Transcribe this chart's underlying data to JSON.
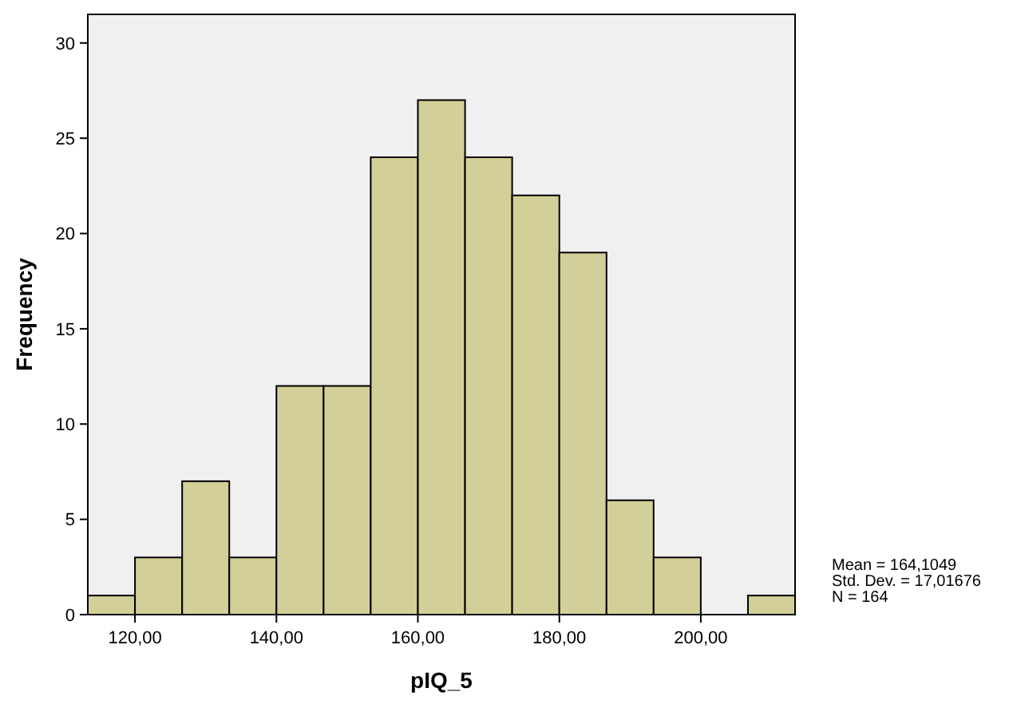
{
  "chart_data": {
    "type": "histogram",
    "xlabel": "pIQ_5",
    "ylabel": "Frequency",
    "bins": [
      113.33,
      120,
      126.67,
      133.33,
      140,
      146.67,
      153.33,
      160,
      166.67,
      173.33,
      180,
      186.67,
      193.33,
      200,
      206.67,
      213.33
    ],
    "values": [
      1,
      3,
      7,
      3,
      12,
      12,
      24,
      27,
      24,
      22,
      19,
      6,
      3,
      0,
      1
    ],
    "color": "#d3cf98",
    "xlim": [
      113.33,
      213.33
    ],
    "xticks": [
      {
        "value": 120,
        "label": "120,00"
      },
      {
        "value": 140,
        "label": "140,00"
      },
      {
        "value": 160,
        "label": "160,00"
      },
      {
        "value": 180,
        "label": "180,00"
      },
      {
        "value": 200,
        "label": "200,00"
      }
    ],
    "ylim": [
      0,
      31.5
    ],
    "yticks": [
      0,
      5,
      10,
      15,
      20,
      25,
      30
    ],
    "grid": false,
    "annotations": [
      "Mean = 164,1049",
      "Std. Dev. = 17,01676",
      "N = 164"
    ]
  }
}
